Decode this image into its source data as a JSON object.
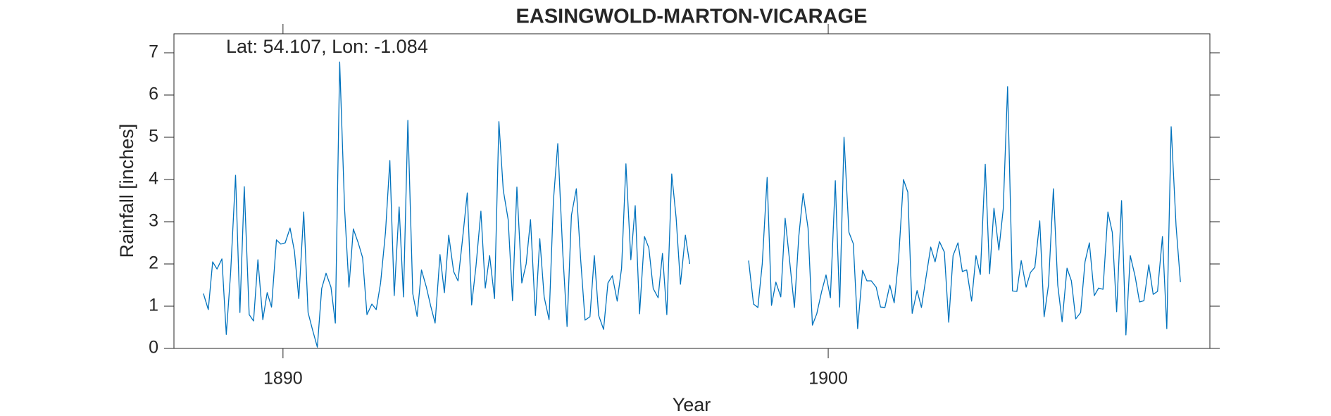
{
  "chart_data": {
    "type": "line",
    "title": "EASINGWOLD-MARTON-VICARAGE",
    "annotation": "Lat: 54.107, Lon: -1.084",
    "xlabel": "Year",
    "ylabel": "Rainfall [inches]",
    "color": "#0072bd",
    "xlim": [
      1888,
      1907
    ],
    "xticks": [
      1890,
      1900
    ],
    "ylim": [
      0,
      7.45
    ],
    "yticks": [
      0,
      1,
      2,
      3,
      4,
      5,
      6,
      7
    ],
    "x": [
      1888.54,
      1888.63,
      1888.71,
      1888.79,
      1888.88,
      1888.96,
      1889.04,
      1889.13,
      1889.21,
      1889.29,
      1889.38,
      1889.46,
      1889.54,
      1889.63,
      1889.71,
      1889.79,
      1889.88,
      1889.96,
      1890.04,
      1890.13,
      1890.21,
      1890.29,
      1890.38,
      1890.46,
      1890.54,
      1890.63,
      1890.71,
      1890.79,
      1890.88,
      1890.96,
      1891.04,
      1891.13,
      1891.21,
      1891.29,
      1891.38,
      1891.46,
      1891.54,
      1891.63,
      1891.71,
      1891.79,
      1891.88,
      1891.96,
      1892.04,
      1892.13,
      1892.21,
      1892.29,
      1892.38,
      1892.46,
      1892.54,
      1892.63,
      1892.71,
      1892.79,
      1892.88,
      1892.96,
      1893.04,
      1893.13,
      1893.21,
      1893.29,
      1893.38,
      1893.46,
      1893.54,
      1893.63,
      1893.71,
      1893.79,
      1893.88,
      1893.96,
      1894.04,
      1894.13,
      1894.21,
      1894.29,
      1894.38,
      1894.46,
      1894.54,
      1894.63,
      1894.71,
      1894.79,
      1894.88,
      1894.96,
      1895.04,
      1895.13,
      1895.21,
      1895.29,
      1895.38,
      1895.46,
      1895.54,
      1895.63,
      1895.71,
      1895.79,
      1895.88,
      1895.96,
      1896.04,
      1896.13,
      1896.21,
      1896.29,
      1896.38,
      1896.46,
      1896.54,
      1896.63,
      1896.71,
      1896.79,
      1896.88,
      1896.96,
      1897.04,
      1897.13,
      1897.21,
      1897.29,
      1897.38,
      1897.46,
      1897.54,
      1897.63,
      1897.71,
      1897.79,
      1897.88,
      1897.96,
      1898.04,
      1898.13,
      1898.21,
      1898.29,
      1898.38,
      1898.46,
      1898.54,
      1898.63,
      1898.71,
      1898.79,
      1898.88,
      1898.96,
      1899.04,
      1899.13,
      1899.21,
      1899.29,
      1899.38,
      1899.46,
      1899.54,
      1899.63,
      1899.71,
      1899.79,
      1899.88,
      1899.96,
      1900.04,
      1900.13,
      1900.21,
      1900.29,
      1900.38,
      1900.46,
      1900.54,
      1900.63,
      1900.71,
      1900.79,
      1900.88,
      1900.96,
      1901.04,
      1901.13,
      1901.21,
      1901.29,
      1901.38,
      1901.46,
      1901.54,
      1901.63,
      1901.71,
      1901.79,
      1901.88,
      1901.96,
      1902.04,
      1902.13,
      1902.21,
      1902.29,
      1902.38,
      1902.46,
      1902.54,
      1902.63,
      1902.71,
      1902.79,
      1902.88,
      1902.96,
      1903.04,
      1903.13,
      1903.21,
      1903.29,
      1903.38,
      1903.46,
      1903.54,
      1903.63,
      1903.71,
      1903.79,
      1903.88,
      1903.96,
      1904.04,
      1904.13,
      1904.21,
      1904.29,
      1904.38,
      1904.46,
      1904.54,
      1904.63,
      1904.71,
      1904.79,
      1904.88,
      1904.96,
      1905.04,
      1905.13,
      1905.21,
      1905.29,
      1905.38,
      1905.46,
      1905.54,
      1905.63,
      1905.71,
      1905.79,
      1905.88,
      1905.96,
      1906.04,
      1906.13,
      1906.21,
      1906.29,
      1906.38,
      1906.46
    ],
    "values": [
      1.3,
      0.92,
      2.05,
      1.88,
      2.12,
      0.33,
      1.8,
      4.1,
      0.85,
      3.83,
      0.8,
      0.65,
      2.1,
      0.68,
      1.32,
      0.98,
      2.57,
      2.47,
      2.5,
      2.85,
      2.3,
      1.18,
      3.23,
      0.85,
      0.45,
      0.03,
      1.42,
      1.78,
      1.45,
      0.6,
      6.78,
      3.3,
      1.45,
      2.83,
      2.5,
      2.15,
      0.8,
      1.05,
      0.92,
      1.55,
      2.75,
      4.45,
      1.25,
      3.35,
      1.22,
      5.4,
      1.3,
      0.76,
      1.86,
      1.45,
      1.0,
      0.6,
      2.22,
      1.32,
      2.68,
      1.82,
      1.6,
      2.55,
      3.68,
      1.03,
      1.95,
      3.25,
      1.43,
      2.2,
      1.18,
      5.37,
      3.75,
      3.05,
      1.13,
      3.82,
      1.55,
      2.0,
      3.05,
      0.78,
      2.6,
      1.22,
      0.68,
      3.5,
      4.85,
      2.3,
      0.52,
      3.15,
      3.78,
      2.1,
      0.67,
      0.75,
      2.2,
      0.78,
      0.45,
      1.55,
      1.72,
      1.12,
      1.9,
      4.37,
      2.1,
      3.38,
      0.82,
      2.65,
      2.38,
      1.42,
      1.2,
      2.25,
      0.8,
      4.13,
      3.1,
      1.52,
      2.68,
      2.0,
      null,
      null,
      null,
      null,
      null,
      null,
      null,
      null,
      null,
      null,
      null,
      null,
      2.08,
      1.05,
      0.97,
      2.0,
      4.05,
      1.02,
      1.57,
      1.22,
      3.08,
      2.1,
      0.97,
      2.65,
      3.67,
      2.85,
      0.55,
      0.82,
      1.35,
      1.74,
      1.2,
      3.97,
      0.98,
      5.0,
      2.75,
      2.48,
      0.47,
      1.85,
      1.6,
      1.6,
      1.45,
      0.98,
      0.97,
      1.5,
      1.08,
      2.1,
      4.0,
      3.7,
      0.83,
      1.37,
      0.97,
      1.65,
      2.4,
      2.05,
      2.53,
      2.28,
      0.62,
      2.2,
      2.5,
      1.82,
      1.86,
      1.12,
      2.2,
      1.75,
      4.36,
      1.77,
      3.32,
      2.33,
      3.3,
      6.2,
      1.36,
      1.35,
      2.08,
      1.45,
      1.8,
      1.92,
      3.02,
      0.75,
      1.5,
      3.78,
      1.5,
      0.63,
      1.9,
      1.6,
      0.7,
      0.85,
      2.05,
      2.5,
      1.25,
      1.43,
      1.4,
      3.23,
      2.75,
      0.87,
      3.5,
      0.32,
      2.2,
      1.7,
      1.1,
      1.13,
      1.98,
      1.28,
      1.35,
      2.65,
      0.47,
      5.25,
      2.9,
      1.57
    ]
  }
}
